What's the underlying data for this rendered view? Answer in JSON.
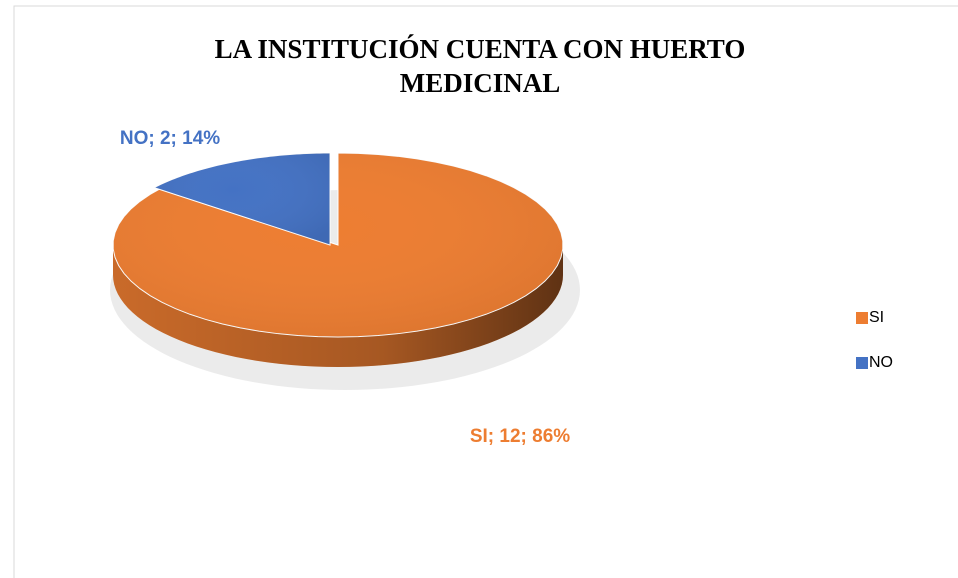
{
  "chart_data": {
    "type": "pie",
    "title": "LA INSTITUCIÓN CUENTA CON HUERTO MEDICINAL",
    "categories": [
      "SI",
      "NO"
    ],
    "values": [
      12,
      2
    ],
    "value_labels": [
      "SI; 12; 86%",
      "NO; 2; 14%"
    ],
    "colors": [
      "#ed7d31",
      "#4472c4"
    ],
    "legend": "right"
  }
}
